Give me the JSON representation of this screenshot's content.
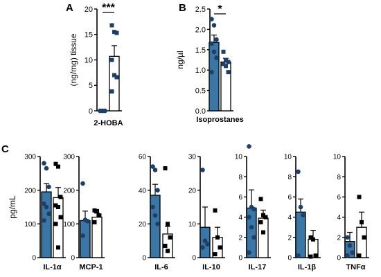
{
  "panel_letters": [
    "A",
    "B",
    "C"
  ],
  "colors": {
    "filled": "#3a77a6",
    "open": "#ffffff",
    "marker": "#1e3f66",
    "stroke": "#000000",
    "significance": "#e31a1c"
  },
  "chart_data": [
    {
      "type": "bar",
      "panel": "A",
      "categories": [
        "2-HOBA"
      ],
      "ylabel": "(ng/mg) tissue",
      "ylim": [
        0,
        20
      ],
      "yticks": [
        "0",
        "5",
        "10",
        "15",
        "20"
      ],
      "significance": "***",
      "series": [
        {
          "style": "filled",
          "mean": 0,
          "sem": 0,
          "points": [
            0,
            0,
            0,
            0,
            0,
            0
          ],
          "marker": "circle"
        },
        {
          "style": "open",
          "mean": 10.7,
          "sem": 2.1,
          "points": [
            16.8,
            15.5,
            15.3,
            10.0,
            7.0,
            6.6,
            3.8
          ],
          "marker": "square"
        }
      ]
    },
    {
      "type": "bar",
      "panel": "B",
      "categories": [
        "Isoprostanes"
      ],
      "ylabel": "ng/µl",
      "ylim": [
        0,
        2.5
      ],
      "yticks": [
        "0.0",
        "0.5",
        "1.0",
        "1.5",
        "2.0",
        "2.5"
      ],
      "significance": "*",
      "series": [
        {
          "style": "filled",
          "mean": 1.68,
          "sem": 0.18,
          "points": [
            2.25,
            2.1,
            1.75,
            1.65,
            1.45,
            1.3,
            0.95
          ],
          "marker": "circle"
        },
        {
          "style": "open",
          "mean": 1.2,
          "sem": 0.09,
          "points": [
            1.45,
            1.25,
            1.2,
            1.15,
            1.1,
            0.95
          ],
          "marker": "square"
        }
      ]
    },
    {
      "type": "bar",
      "panel": "C",
      "categories": [
        "IL-1α"
      ],
      "ylabel": "pg/mL",
      "ylim": [
        0,
        300
      ],
      "yticks": [
        "0",
        "100",
        "200",
        "300"
      ],
      "series": [
        {
          "style": "filled",
          "mean": 195,
          "sem": 25,
          "points": [
            280,
            265,
            210,
            160,
            150,
            130,
            110
          ],
          "marker": "circle"
        },
        {
          "style": "open",
          "mean": 178,
          "sem": 30,
          "points": [
            278,
            270,
            180,
            155,
            150,
            120,
            100,
            30
          ],
          "marker": "square"
        }
      ]
    },
    {
      "type": "bar",
      "panel": "C",
      "categories": [
        "MCP-1"
      ],
      "ylim": [
        0,
        300
      ],
      "yticks": [
        "0",
        "100",
        "200",
        "300"
      ],
      "series": [
        {
          "style": "filled",
          "mean": 110,
          "sem": 28,
          "points": [
            220,
            112,
            108,
            65
          ],
          "marker": "circle"
        },
        {
          "style": "open",
          "mean": 120,
          "sem": 12,
          "points": [
            140,
            138,
            125,
            105
          ],
          "marker": "square"
        }
      ]
    },
    {
      "type": "bar",
      "panel": "C",
      "categories": [
        "IL-6"
      ],
      "ylim": [
        0,
        60
      ],
      "yticks": [
        "0",
        "20",
        "40",
        "60"
      ],
      "series": [
        {
          "style": "filled",
          "mean": 37,
          "sem": 6.5,
          "points": [
            54,
            52,
            40,
            30,
            25,
            20
          ],
          "marker": "circle"
        },
        {
          "style": "open",
          "mean": 14,
          "sem": 4.5,
          "points": [
            53,
            20,
            12,
            7,
            4
          ],
          "marker": "square"
        }
      ]
    },
    {
      "type": "bar",
      "panel": "C",
      "categories": [
        "IL-10"
      ],
      "ylim": [
        0,
        30
      ],
      "yticks": [
        "0",
        "10",
        "20",
        "30"
      ],
      "series": [
        {
          "style": "filled",
          "mean": 9,
          "sem": 6,
          "points": [
            26,
            5,
            4,
            3
          ],
          "marker": "circle"
        },
        {
          "style": "open",
          "mean": 6,
          "sem": 3,
          "points": [
            14,
            6,
            3,
            1
          ],
          "marker": "square"
        }
      ]
    },
    {
      "type": "bar",
      "panel": "C",
      "categories": [
        "IL-17"
      ],
      "ylim": [
        0,
        10
      ],
      "yticks": [
        "0",
        "2",
        "4",
        "6",
        "8",
        "10"
      ],
      "series": [
        {
          "style": "filled",
          "mean": 4.9,
          "sem": 1.8,
          "points": [
            11,
            5,
            4.8,
            4.0,
            3.0,
            2.0,
            0.5
          ],
          "marker": "circle"
        },
        {
          "style": "open",
          "mean": 3.9,
          "sem": 0.8,
          "points": [
            5.8,
            4.2,
            4.0,
            3.5,
            2.5
          ],
          "marker": "square"
        }
      ]
    },
    {
      "type": "bar",
      "panel": "C",
      "categories": [
        "IL-1β"
      ],
      "ylim": [
        0,
        10
      ],
      "yticks": [
        "0",
        "2",
        "4",
        "6",
        "8",
        "10"
      ],
      "series": [
        {
          "style": "filled",
          "mean": 4.5,
          "sem": 1.3,
          "points": [
            8.5,
            5.0,
            4.2,
            0.2
          ],
          "marker": "circle"
        },
        {
          "style": "open",
          "mean": 1.8,
          "sem": 0.9,
          "points": [
            2.0,
            1.8,
            0.2,
            0.1
          ],
          "marker": "square"
        }
      ]
    },
    {
      "type": "bar",
      "panel": "C",
      "categories": [
        "TNFα"
      ],
      "ylim": [
        0,
        10
      ],
      "yticks": [
        "0",
        "2",
        "4",
        "6",
        "8",
        "10"
      ],
      "series": [
        {
          "style": "filled",
          "mean": 1.6,
          "sem": 0.9,
          "points": [
            2.0,
            1.2,
            0.5,
            0.2
          ],
          "marker": "circle"
        },
        {
          "style": "open",
          "mean": 3.0,
          "sem": 1.5,
          "points": [
            6.0,
            3.5,
            2.0,
            0.2
          ],
          "marker": "square"
        }
      ]
    }
  ]
}
